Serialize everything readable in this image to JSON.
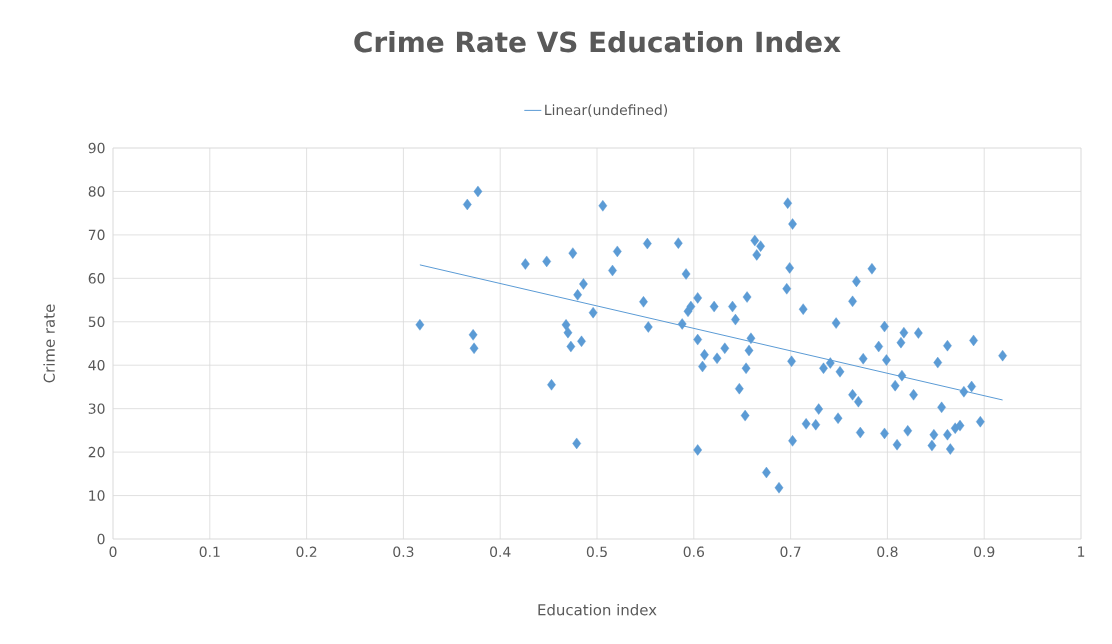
{
  "chart_data": {
    "type": "scatter",
    "title": "Crime Rate VS Education Index",
    "xlabel": "Education index",
    "ylabel": "Crime rate",
    "xlim": [
      0,
      1
    ],
    "ylim": [
      0,
      90
    ],
    "xticks": [
      0,
      0.1,
      0.2,
      0.3,
      0.4,
      0.5,
      0.6,
      0.7,
      0.8,
      0.9,
      1
    ],
    "yticks": [
      0,
      10,
      20,
      30,
      40,
      50,
      60,
      70,
      80,
      90
    ],
    "grid": true,
    "legend": "top",
    "marker": "diamond",
    "series": [
      {
        "color": "#5b9bd5",
        "x": [
          0.317,
          0.366,
          0.377,
          0.372,
          0.373,
          0.426,
          0.448,
          0.453,
          0.468,
          0.47,
          0.473,
          0.475,
          0.479,
          0.48,
          0.484,
          0.486,
          0.496,
          0.506,
          0.516,
          0.521,
          0.548,
          0.552,
          0.553,
          0.584,
          0.588,
          0.592,
          0.594,
          0.597,
          0.604,
          0.604,
          0.604,
          0.609,
          0.611,
          0.621,
          0.624,
          0.632,
          0.64,
          0.643,
          0.647,
          0.653,
          0.654,
          0.655,
          0.657,
          0.659,
          0.663,
          0.665,
          0.669,
          0.675,
          0.688,
          0.696,
          0.697,
          0.699,
          0.701,
          0.702,
          0.702,
          0.713,
          0.716,
          0.726,
          0.729,
          0.734,
          0.741,
          0.747,
          0.749,
          0.751,
          0.764,
          0.764,
          0.768,
          0.77,
          0.772,
          0.775,
          0.784,
          0.791,
          0.797,
          0.797,
          0.799,
          0.808,
          0.81,
          0.814,
          0.815,
          0.817,
          0.821,
          0.827,
          0.832,
          0.846,
          0.848,
          0.852,
          0.856,
          0.862,
          0.862,
          0.865,
          0.87,
          0.875,
          0.879,
          0.887,
          0.889,
          0.896,
          0.919
        ],
        "values": [
          49.3,
          77.0,
          80.0,
          47.0,
          43.9,
          63.3,
          63.9,
          35.5,
          49.3,
          47.5,
          44.3,
          65.8,
          22.0,
          56.2,
          45.5,
          58.7,
          52.1,
          76.7,
          61.8,
          66.2,
          54.6,
          68.0,
          48.8,
          68.1,
          49.5,
          61.0,
          52.4,
          53.5,
          55.5,
          45.9,
          20.5,
          39.7,
          42.4,
          53.5,
          41.6,
          43.9,
          53.5,
          50.5,
          34.6,
          28.4,
          39.3,
          55.7,
          43.4,
          46.2,
          68.7,
          65.4,
          67.4,
          15.3,
          11.8,
          57.6,
          77.3,
          62.4,
          40.9,
          72.5,
          22.6,
          52.9,
          26.5,
          26.3,
          29.9,
          39.3,
          40.5,
          49.7,
          27.8,
          38.5,
          54.7,
          33.2,
          59.3,
          31.6,
          24.5,
          41.5,
          62.2,
          44.3,
          48.9,
          24.3,
          41.2,
          35.3,
          21.7,
          45.2,
          37.6,
          47.5,
          24.9,
          33.2,
          47.4,
          21.5,
          24.0,
          40.6,
          30.3,
          44.5,
          24.0,
          20.7,
          25.5,
          26.1,
          33.9,
          35.1,
          45.7,
          27.0,
          42.2
        ]
      },
      {
        "type": "line",
        "name": "Linear(undefined)",
        "color": "#5b9bd5",
        "marker": "none",
        "x": [
          0.317,
          0.919
        ],
        "values": [
          63.1,
          32.0
        ]
      }
    ]
  }
}
